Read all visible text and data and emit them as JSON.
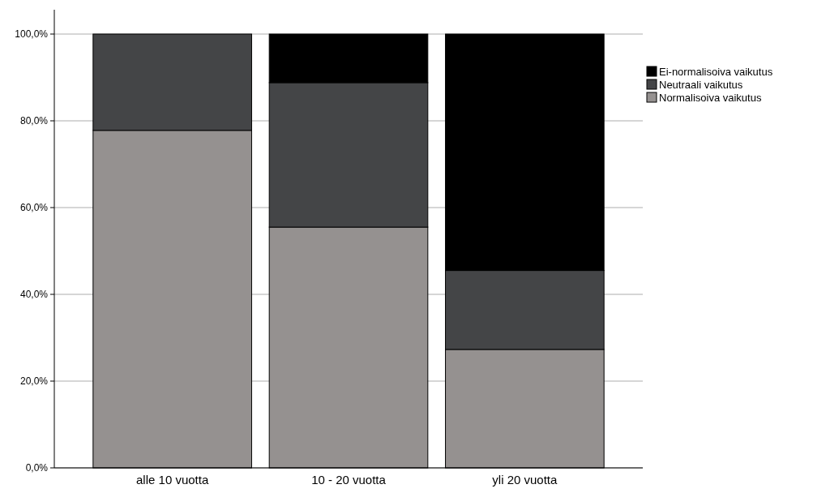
{
  "chart_data": {
    "type": "bar",
    "stacked": true,
    "categories": [
      "alle 10 vuotta",
      "10 - 20 vuotta",
      "yli 20 vuotta"
    ],
    "series": [
      {
        "name": "Normalisoiva vaikutus",
        "color": "#959190",
        "values": [
          77.8,
          55.5,
          27.3
        ]
      },
      {
        "name": "Neutraali vaikutus",
        "color": "#444547",
        "values": [
          22.2,
          33.3,
          18.2
        ]
      },
      {
        "name": "Ei-normalisoiva vaikutus",
        "color": "#000000",
        "values": [
          0,
          11.2,
          54.5
        ]
      }
    ],
    "ylim": [
      0,
      100
    ],
    "yticks": [
      {
        "value": 0,
        "label": "0,0%"
      },
      {
        "value": 20,
        "label": "20,0%"
      },
      {
        "value": 40,
        "label": "40,0%"
      },
      {
        "value": 60,
        "label": "60,0%"
      },
      {
        "value": 80,
        "label": "80,0%"
      },
      {
        "value": 100,
        "label": "100,0%"
      }
    ],
    "grid": "y",
    "legend": "top right"
  }
}
